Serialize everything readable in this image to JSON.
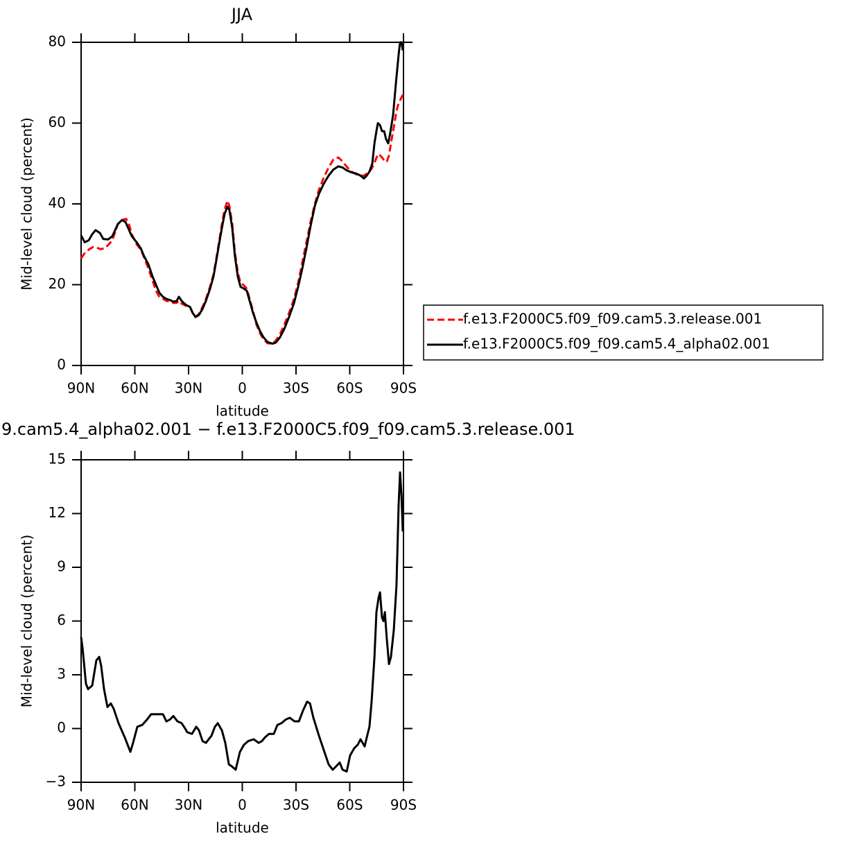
{
  "chart_data": [
    {
      "type": "line",
      "title": "JJA",
      "xlabel": "latitude",
      "ylabel": "Mid-level cloud (percent)",
      "xlim": [
        90,
        -90
      ],
      "ylim": [
        0,
        80
      ],
      "xticks": [
        {
          "value": 90,
          "label": "90N"
        },
        {
          "value": 60,
          "label": "60N"
        },
        {
          "value": 30,
          "label": "30N"
        },
        0,
        {
          "value": -30,
          "label": "30S"
        },
        {
          "value": -60,
          "label": "60S"
        },
        {
          "value": -90,
          "label": "90S"
        }
      ],
      "yticks": [
        0,
        20,
        40,
        60,
        80
      ],
      "legend": "right",
      "series": [
        {
          "name": "f.e13.F2000C5.f09_f09.cam5.3.release.001",
          "color": "#ff0000",
          "linestyle": "dashed",
          "x": [
            90,
            88,
            85.7,
            83.4,
            81.5,
            79.2,
            76.8,
            74.5,
            72.6,
            71,
            69.5,
            67.2,
            64.8,
            63.3,
            61.7,
            59,
            56.7,
            54.8,
            52.4,
            50.1,
            48.2,
            46.3,
            44.3,
            42.4,
            40.4,
            38.5,
            36.6,
            35.4,
            33.9,
            31.5,
            29.2,
            27.7,
            26.1,
            24.2,
            22.2,
            20.3,
            18,
            16.1,
            14.5,
            13,
            11.4,
            9.9,
            8.3,
            7.2,
            5.6,
            4.1,
            2.5,
            1,
            -1,
            -2.5,
            -4.1,
            -6,
            -8,
            -9.9,
            -11.8,
            -14.1,
            -16.9,
            -18.8,
            -21.1,
            -23.4,
            -26.1,
            -28.9,
            -31.2,
            -33.5,
            -35.8,
            -38.1,
            -40.5,
            -42.8,
            -45.5,
            -48.2,
            -50.9,
            -53.6,
            -56,
            -58.3,
            -61,
            -63.7,
            -66,
            -67.9,
            -69.5,
            -71,
            -72.6,
            -74.1,
            -75.7,
            -76.9,
            -78,
            -79.6,
            -80.7,
            -81.9,
            -83.4,
            -85,
            -86.1,
            -87.3,
            -88.5,
            -89.6
          ],
          "values": [
            26.5,
            27.8,
            28.7,
            29.3,
            29.2,
            28.8,
            29,
            30,
            31,
            33,
            35,
            36,
            36.3,
            35,
            32.5,
            30,
            28.7,
            26.7,
            24,
            21,
            18.5,
            17,
            16.5,
            16,
            15.8,
            15.5,
            15.5,
            16,
            15.3,
            14.8,
            14.5,
            13,
            12,
            12.8,
            14.5,
            16.5,
            19.5,
            22.5,
            26.5,
            30.5,
            35,
            38.5,
            40.8,
            39.5,
            35,
            28,
            23,
            20.5,
            19.8,
            19,
            16.5,
            13.5,
            10,
            8,
            6.5,
            5.5,
            5.4,
            6.2,
            7.8,
            10,
            13,
            16.5,
            20.5,
            25.5,
            30.5,
            35.5,
            40,
            43.5,
            46.5,
            49,
            51,
            51.5,
            50.5,
            49.2,
            48,
            47.3,
            47,
            47,
            47.5,
            48,
            49,
            50.5,
            52.3,
            52,
            51.5,
            50.5,
            50.5,
            52,
            56,
            60,
            63,
            65,
            66,
            67
          ]
        },
        {
          "name": "f.e13.F2000C5.f09_f09.cam5.4_alpha02.001",
          "color": "#000000",
          "linestyle": "solid",
          "x": [
            90,
            88,
            85.7,
            83.8,
            81.9,
            79.5,
            77.6,
            74.9,
            72.6,
            71,
            69.5,
            67.2,
            65.2,
            63.7,
            61.7,
            59,
            56.7,
            54.8,
            52.4,
            50.1,
            48.2,
            46.3,
            44.3,
            42.4,
            40.4,
            38.5,
            36.6,
            35.4,
            33.9,
            31.5,
            29.2,
            27.7,
            26.1,
            24.2,
            22.2,
            20.3,
            18,
            16.1,
            14.5,
            13,
            11.4,
            9.9,
            8.3,
            7.2,
            5.6,
            4.1,
            2.5,
            1,
            -1,
            -2.5,
            -4.1,
            -6,
            -8,
            -9.9,
            -11.8,
            -14.1,
            -16.9,
            -18.8,
            -21.1,
            -23.4,
            -26.1,
            -28.9,
            -31.2,
            -33.5,
            -35.8,
            -38.1,
            -40.5,
            -42.8,
            -45.5,
            -48.2,
            -50.9,
            -53.6,
            -56,
            -58.3,
            -61,
            -63.7,
            -66,
            -67.9,
            -69.5,
            -71,
            -72.6,
            -73.8,
            -74.9,
            -75.7,
            -76.9,
            -78,
            -79.2,
            -80.3,
            -81.5,
            -82.6,
            -84.2,
            -85.8,
            -87.3,
            -88.1,
            -88.9,
            -89.6
          ],
          "values": [
            32.2,
            30.5,
            31,
            32.5,
            33.5,
            32.8,
            31.3,
            31.2,
            32,
            33.5,
            35,
            36,
            35.5,
            34,
            32,
            30.5,
            29,
            27,
            25,
            22,
            20,
            18,
            17,
            16.5,
            16.2,
            15.8,
            16,
            17,
            16,
            15,
            14.5,
            13,
            12,
            12.5,
            14,
            16,
            19,
            22,
            26,
            30,
            34,
            37.5,
            39.3,
            38.5,
            34,
            27,
            22,
            19.5,
            19,
            18.5,
            16,
            13,
            10.5,
            8.5,
            7,
            5.8,
            5.4,
            5.7,
            7,
            9,
            12,
            15.5,
            19.5,
            24,
            29,
            34.5,
            39.5,
            42.5,
            45,
            47,
            48.5,
            49.3,
            49,
            48.3,
            47.8,
            47.5,
            47,
            46.3,
            47,
            48,
            50,
            55,
            58,
            60,
            59.5,
            58,
            58,
            56,
            55,
            57.5,
            62,
            70,
            77,
            80,
            80,
            78
          ]
        }
      ]
    },
    {
      "type": "line",
      "title": "9.cam5.4_alpha02.001 − f.e13.F2000C5.f09_f09.cam5.3.release.001",
      "xlabel": "latitude",
      "ylabel": "Mid-level cloud (percent)",
      "xlim": [
        90,
        -90
      ],
      "ylim": [
        -3,
        15
      ],
      "xticks": [
        {
          "value": 90,
          "label": "90N"
        },
        {
          "value": 60,
          "label": "60N"
        },
        {
          "value": 30,
          "label": "30N"
        },
        0,
        {
          "value": -30,
          "label": "30S"
        },
        {
          "value": -60,
          "label": "60S"
        },
        {
          "value": -90,
          "label": "90S"
        }
      ],
      "yticks": [
        {
          "value": -3,
          "label": "−3"
        },
        0,
        3,
        6,
        9,
        12,
        15
      ],
      "series": [
        {
          "color": "#000000",
          "linestyle": "solid",
          "x": [
            90,
            89.2,
            87.3,
            86.1,
            83.8,
            81.5,
            79.9,
            78.8,
            77.2,
            75.3,
            73.4,
            71.8,
            69.1,
            65.6,
            62.5,
            61,
            58.6,
            55.9,
            53.2,
            50.9,
            47.8,
            44.3,
            42.4,
            40.4,
            38.5,
            36.2,
            33.9,
            31.9,
            30.8,
            28.1,
            25.7,
            24.2,
            22.2,
            20.3,
            17.2,
            15.3,
            13.7,
            11.4,
            9.5,
            7.5,
            6,
            3.7,
            1.3,
            -1,
            -3.3,
            -6.4,
            -9.1,
            -11,
            -12.6,
            -14.9,
            -17.6,
            -19.6,
            -21.9,
            -24.2,
            -26.5,
            -29.2,
            -31.6,
            -33.9,
            -36.2,
            -37.8,
            -39.7,
            -42.8,
            -45.5,
            -48.2,
            -50.5,
            -52.5,
            -54.4,
            -56,
            -58.3,
            -60.2,
            -62.5,
            -64.5,
            -66,
            -67.2,
            -68.3,
            -69.5,
            -71,
            -72.2,
            -73.8,
            -74.9,
            -76.1,
            -76.9,
            -78,
            -78.8,
            -79.6,
            -80.7,
            -81.9,
            -83,
            -84.6,
            -86.1,
            -87.3,
            -88.1,
            -88.9,
            -89.6
          ],
          "values": [
            5.1,
            4.5,
            2.5,
            2.2,
            2.4,
            3.8,
            4,
            3.5,
            2.2,
            1.2,
            1.4,
            1.1,
            0.3,
            -0.5,
            -1.3,
            -0.8,
            0.1,
            0.2,
            0.5,
            0.8,
            0.8,
            0.8,
            0.4,
            0.5,
            0.7,
            0.4,
            0.3,
            0,
            -0.2,
            -0.3,
            0.1,
            -0.1,
            -0.7,
            -0.8,
            -0.4,
            0.1,
            0.3,
            -0.1,
            -0.8,
            -2,
            -2.1,
            -2.3,
            -1.3,
            -0.9,
            -0.7,
            -0.6,
            -0.8,
            -0.7,
            -0.5,
            -0.3,
            -0.3,
            0.2,
            0.3,
            0.5,
            0.6,
            0.4,
            0.4,
            1,
            1.5,
            1.4,
            0.6,
            -0.4,
            -1.2,
            -2,
            -2.3,
            -2.1,
            -1.9,
            -2.3,
            -2.4,
            -1.5,
            -1.1,
            -0.9,
            -0.6,
            -0.8,
            -1,
            -0.5,
            0.1,
            1.5,
            4,
            6.5,
            7.3,
            7.6,
            6.2,
            6,
            6.5,
            5,
            3.6,
            4,
            5.5,
            8,
            12.5,
            14.3,
            13,
            11
          ]
        }
      ]
    }
  ]
}
